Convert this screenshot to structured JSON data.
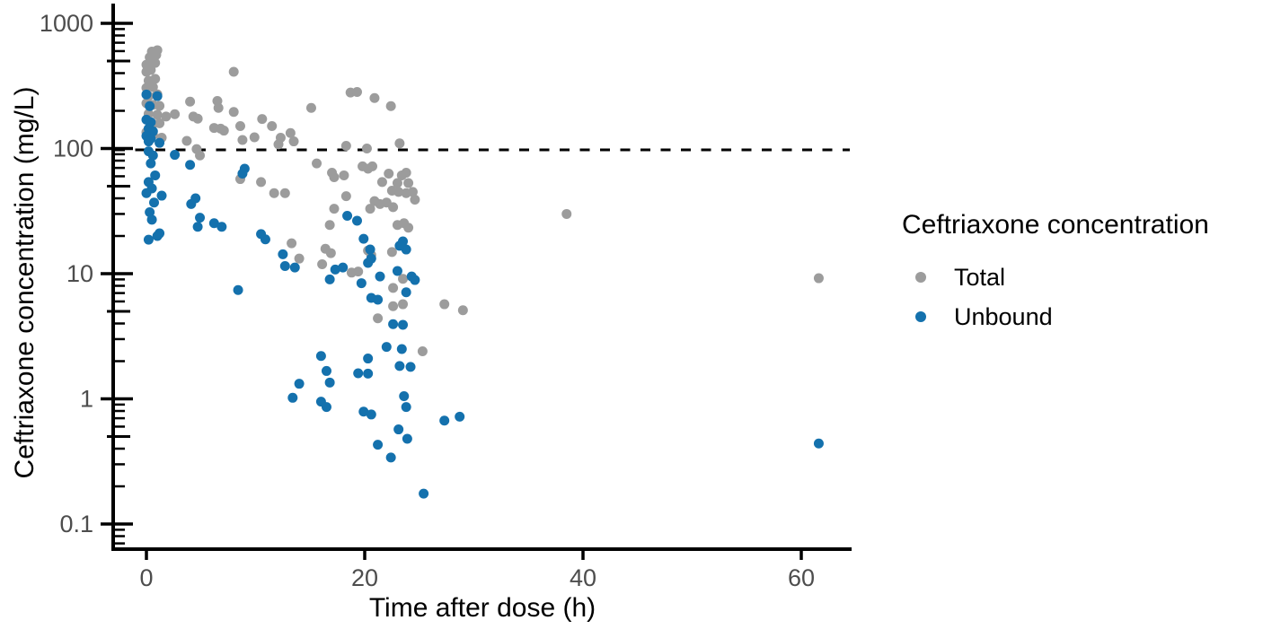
{
  "chart_data": {
    "type": "scatter",
    "title": "",
    "xlabel": "Time after dose (h)",
    "ylabel": "Ceftriaxone concentration (mg/L)",
    "y_scale": "log10",
    "grid": false,
    "xlim": [
      -3,
      64.6
    ],
    "ylim": [
      0.063,
      1340
    ],
    "x_ticks": [
      {
        "value": 0,
        "label": "0"
      },
      {
        "value": 20,
        "label": "20"
      },
      {
        "value": 40,
        "label": "40"
      },
      {
        "value": 60,
        "label": "60"
      }
    ],
    "y_ticks": [
      {
        "value": 1000,
        "label": "1000"
      },
      {
        "value": 100,
        "label": "100"
      },
      {
        "value": 10,
        "label": "10"
      },
      {
        "value": 1,
        "label": "1"
      },
      {
        "value": 0.1,
        "label": "0.1"
      }
    ],
    "reference_line": {
      "y": 100,
      "style": "dashed",
      "color": "#000000"
    },
    "colors": {
      "axis": "#000000",
      "tick_labels": "#4d4d4d",
      "total": "#9c9c9c",
      "unbound": "#1471ad"
    },
    "legend": {
      "title": "Ceftriaxone concentration",
      "position": "right",
      "items": [
        {
          "label": "Total",
          "color": "#9c9c9c"
        },
        {
          "label": "Unbound",
          "color": "#1471ad"
        }
      ]
    },
    "series": [
      {
        "name": "Total",
        "color": "#9c9c9c",
        "points": [
          [
            0.5,
            595
          ],
          [
            1.0,
            610
          ],
          [
            0.3,
            535
          ],
          [
            0.9,
            560
          ],
          [
            0.0,
            467
          ],
          [
            0.8,
            483
          ],
          [
            0.0,
            410
          ],
          [
            0.4,
            424
          ],
          [
            0.2,
            348
          ],
          [
            0.8,
            360
          ],
          [
            0.0,
            305
          ],
          [
            0.6,
            310
          ],
          [
            0.2,
            262
          ],
          [
            1.0,
            271
          ],
          [
            0.0,
            230
          ],
          [
            0.6,
            223
          ],
          [
            1.2,
            219
          ],
          [
            0.2,
            189
          ],
          [
            1.0,
            186
          ],
          [
            1.8,
            180
          ],
          [
            2.6,
            188
          ],
          [
            0.6,
            157
          ],
          [
            1.2,
            159
          ],
          [
            0.0,
            135
          ],
          [
            0.6,
            128
          ],
          [
            1.4,
            122
          ],
          [
            4.0,
            237
          ],
          [
            4.3,
            180
          ],
          [
            4.7,
            173
          ],
          [
            3.7,
            115
          ],
          [
            4.6,
            99
          ],
          [
            4.9,
            88
          ],
          [
            6.5,
            240
          ],
          [
            6.6,
            211
          ],
          [
            6.2,
            146
          ],
          [
            6.8,
            144
          ],
          [
            7.1,
            139
          ],
          [
            8.0,
            410
          ],
          [
            8.0,
            196
          ],
          [
            8.6,
            151
          ],
          [
            8.8,
            117
          ],
          [
            9.9,
            123
          ],
          [
            8.6,
            57
          ],
          [
            10.5,
            54
          ],
          [
            10.6,
            172
          ],
          [
            11.5,
            151
          ],
          [
            12.3,
            122
          ],
          [
            12.1,
            108
          ],
          [
            13.2,
            133
          ],
          [
            13.5,
            114
          ],
          [
            15.1,
            211
          ],
          [
            11.7,
            44
          ],
          [
            12.7,
            44
          ],
          [
            13.3,
            17.5
          ],
          [
            14.0,
            13.2
          ],
          [
            15.6,
            76
          ],
          [
            16.4,
            15.8
          ],
          [
            16.9,
            14.6
          ],
          [
            16.1,
            11.9
          ],
          [
            16.8,
            24.5
          ],
          [
            18.7,
            280
          ],
          [
            19.3,
            283
          ],
          [
            20.9,
            253
          ],
          [
            22.4,
            218
          ],
          [
            18.3,
            105
          ],
          [
            20.2,
            100
          ],
          [
            23.2,
            110
          ],
          [
            17.0,
            64
          ],
          [
            17.2,
            59
          ],
          [
            18.1,
            61
          ],
          [
            19.8,
            72
          ],
          [
            20.3,
            69
          ],
          [
            20.7,
            72
          ],
          [
            18.3,
            41.6
          ],
          [
            17.2,
            33
          ],
          [
            21.6,
            54
          ],
          [
            22.2,
            63
          ],
          [
            23.4,
            61
          ],
          [
            23.8,
            64
          ],
          [
            24.0,
            53
          ],
          [
            23.0,
            53
          ],
          [
            22.5,
            46
          ],
          [
            23.1,
            45
          ],
          [
            23.8,
            44
          ],
          [
            24.4,
            45
          ],
          [
            24.6,
            39
          ],
          [
            20.9,
            38
          ],
          [
            21.4,
            36
          ],
          [
            22.0,
            37
          ],
          [
            22.6,
            34
          ],
          [
            20.5,
            33
          ],
          [
            23.0,
            24.5
          ],
          [
            23.6,
            25.3
          ],
          [
            24.0,
            23.3
          ],
          [
            20.3,
            15.3
          ],
          [
            20.6,
            14.1
          ],
          [
            22.5,
            14.9
          ],
          [
            18.8,
            10.2
          ],
          [
            19.4,
            10.4
          ],
          [
            23.5,
            9.1
          ],
          [
            22.6,
            7.7
          ],
          [
            22.6,
            5.5
          ],
          [
            23.5,
            5.7
          ],
          [
            21.2,
            4.4
          ],
          [
            25.3,
            2.4
          ],
          [
            27.3,
            5.7
          ],
          [
            29.0,
            5.1
          ],
          [
            38.5,
            30
          ],
          [
            61.6,
            9.2
          ]
        ]
      },
      {
        "name": "Unbound",
        "color": "#1471ad",
        "points": [
          [
            0.0,
            270
          ],
          [
            1.0,
            262
          ],
          [
            0.3,
            218
          ],
          [
            0.0,
            170
          ],
          [
            0.4,
            162
          ],
          [
            0.2,
            144
          ],
          [
            0.6,
            137
          ],
          [
            0.0,
            126
          ],
          [
            0.4,
            120
          ],
          [
            0.2,
            114
          ],
          [
            1.2,
            111
          ],
          [
            0.2,
            95
          ],
          [
            0.6,
            88
          ],
          [
            0.4,
            76
          ],
          [
            0.8,
            61
          ],
          [
            0.2,
            54
          ],
          [
            0.5,
            48
          ],
          [
            0.0,
            44
          ],
          [
            1.4,
            42
          ],
          [
            0.7,
            37
          ],
          [
            0.3,
            31
          ],
          [
            0.5,
            27
          ],
          [
            1.2,
            21
          ],
          [
            1.0,
            20
          ],
          [
            0.2,
            18.7
          ],
          [
            2.6,
            89
          ],
          [
            4.0,
            74
          ],
          [
            4.5,
            40
          ],
          [
            4.1,
            36
          ],
          [
            4.9,
            28
          ],
          [
            4.7,
            23.7
          ],
          [
            6.2,
            25.3
          ],
          [
            6.9,
            23.7
          ],
          [
            9.0,
            69
          ],
          [
            8.8,
            63
          ],
          [
            8.4,
            7.4
          ],
          [
            10.5,
            20.7
          ],
          [
            10.9,
            18.8
          ],
          [
            12.5,
            14.3
          ],
          [
            12.7,
            11.5
          ],
          [
            13.6,
            11.2
          ],
          [
            13.4,
            1.02
          ],
          [
            14.0,
            1.32
          ],
          [
            16.0,
            2.2
          ],
          [
            16.5,
            1.67
          ],
          [
            16.8,
            1.35
          ],
          [
            16.0,
            0.95
          ],
          [
            16.5,
            0.86
          ],
          [
            16.8,
            9.0
          ],
          [
            17.3,
            10.8
          ],
          [
            18.0,
            11.2
          ],
          [
            18.4,
            29
          ],
          [
            19.3,
            26.5
          ],
          [
            19.9,
            19
          ],
          [
            20.5,
            15.6
          ],
          [
            20.6,
            13.2
          ],
          [
            20.3,
            12.2
          ],
          [
            19.7,
            8.4
          ],
          [
            21.4,
            9.5
          ],
          [
            23.0,
            10.5
          ],
          [
            24.3,
            9.5
          ],
          [
            24.6,
            8.9
          ],
          [
            23.8,
            7.1
          ],
          [
            20.6,
            6.4
          ],
          [
            21.2,
            6.2
          ],
          [
            23.5,
            18.1
          ],
          [
            23.8,
            15.6
          ],
          [
            23.2,
            16.7
          ],
          [
            22.6,
            3.95
          ],
          [
            23.5,
            3.9
          ],
          [
            22.0,
            2.6
          ],
          [
            23.4,
            2.5
          ],
          [
            20.3,
            2.1
          ],
          [
            23.2,
            1.83
          ],
          [
            24.2,
            1.8
          ],
          [
            19.4,
            1.6
          ],
          [
            20.3,
            1.59
          ],
          [
            23.6,
            1.05
          ],
          [
            23.8,
            0.86
          ],
          [
            19.9,
            0.79
          ],
          [
            20.6,
            0.75
          ],
          [
            23.1,
            0.57
          ],
          [
            23.9,
            0.48
          ],
          [
            21.2,
            0.43
          ],
          [
            22.4,
            0.34
          ],
          [
            25.4,
            0.175
          ],
          [
            27.3,
            0.67
          ],
          [
            28.7,
            0.72
          ],
          [
            61.6,
            0.44
          ]
        ]
      }
    ]
  }
}
